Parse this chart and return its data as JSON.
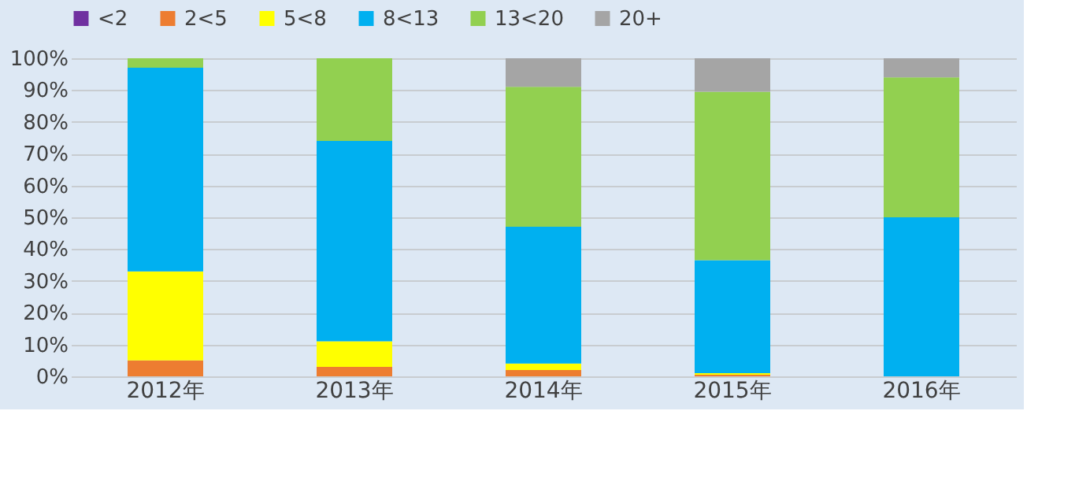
{
  "chart_data": {
    "type": "bar",
    "stacked": true,
    "categories": [
      "2012年",
      "2013年",
      "2014年",
      "2015年",
      "2016年"
    ],
    "series": [
      {
        "name": "<2",
        "color": "#7030a0",
        "values": [
          0,
          0,
          0,
          0,
          0
        ]
      },
      {
        "name": "2<5",
        "color": "#ed7d31",
        "values": [
          5,
          3,
          2,
          0.5,
          0
        ]
      },
      {
        "name": "5<8",
        "color": "#ffff00",
        "values": [
          28,
          8,
          2,
          0.5,
          0
        ]
      },
      {
        "name": "8<13",
        "color": "#00b0f0",
        "values": [
          64,
          63,
          43,
          35.5,
          50
        ]
      },
      {
        "name": "13<20",
        "color": "#92d050",
        "values": [
          3,
          26,
          44,
          53,
          44
        ]
      },
      {
        "name": "20+",
        "color": "#a5a5a5",
        "values": [
          0,
          0,
          9,
          10.5,
          6
        ]
      }
    ],
    "ylim": [
      0,
      100
    ],
    "yticks": [
      {
        "value": 0,
        "label": "0%"
      },
      {
        "value": 10,
        "label": "10%"
      },
      {
        "value": 20,
        "label": "20%"
      },
      {
        "value": 30,
        "label": "30%"
      },
      {
        "value": 40,
        "label": "40%"
      },
      {
        "value": 50,
        "label": "50%"
      },
      {
        "value": 60,
        "label": "60%"
      },
      {
        "value": 70,
        "label": "70%"
      },
      {
        "value": 80,
        "label": "80%"
      },
      {
        "value": 90,
        "label": "90%"
      },
      {
        "value": 100,
        "label": "100%"
      }
    ],
    "grid": "y",
    "legend": "top"
  }
}
